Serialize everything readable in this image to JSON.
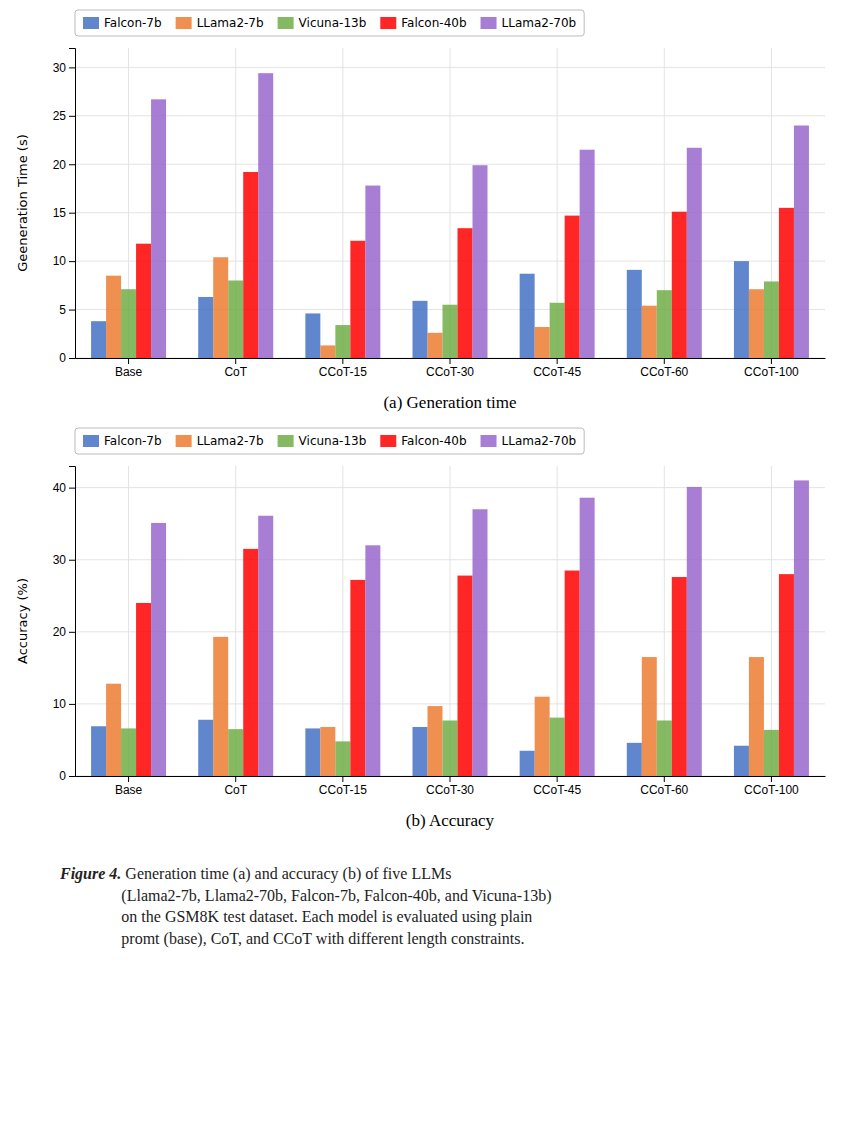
{
  "chart_data": [
    {
      "type": "bar",
      "xlabel": "(a) Generation time",
      "ylabel": "Geeneration Time (s)",
      "categories": [
        "Base",
        "CoT",
        "CCoT-15",
        "CCoT-30",
        "CCoT-45",
        "CCoT-60",
        "CCoT-100"
      ],
      "series": [
        {
          "name": "Falcon-7b",
          "color": "#4472C4",
          "values": [
            3.8,
            6.3,
            4.6,
            5.9,
            8.7,
            9.1,
            10.0
          ]
        },
        {
          "name": "LLama2-7b",
          "color": "#ED7D31",
          "values": [
            8.5,
            10.4,
            1.3,
            2.6,
            3.2,
            5.4,
            7.1
          ]
        },
        {
          "name": "Vicuna-13b",
          "color": "#70AD47",
          "values": [
            7.1,
            8.0,
            3.4,
            5.5,
            5.7,
            7.0,
            7.9
          ]
        },
        {
          "name": "Falcon-40b",
          "color": "#FF0000",
          "values": [
            11.8,
            19.2,
            12.1,
            13.4,
            14.7,
            15.1,
            15.5
          ]
        },
        {
          "name": "LLama2-70b",
          "color": "#9966CC",
          "values": [
            26.7,
            29.4,
            17.8,
            19.9,
            21.5,
            21.7,
            24.0
          ]
        }
      ],
      "ylim": [
        0,
        32
      ],
      "yticks": [
        0,
        5,
        10,
        15,
        20,
        25,
        30
      ],
      "grid": true,
      "legend": "upper left"
    },
    {
      "type": "bar",
      "xlabel": "(b) Accuracy",
      "ylabel": "Accuracy (%)",
      "categories": [
        "Base",
        "CoT",
        "CCoT-15",
        "CCoT-30",
        "CCoT-45",
        "CCoT-60",
        "CCoT-100"
      ],
      "series": [
        {
          "name": "Falcon-7b",
          "color": "#4472C4",
          "values": [
            6.9,
            7.8,
            6.6,
            6.8,
            3.5,
            4.6,
            4.2
          ]
        },
        {
          "name": "LLama2-7b",
          "color": "#ED7D31",
          "values": [
            12.8,
            19.3,
            6.8,
            9.7,
            11.0,
            16.5,
            16.5
          ]
        },
        {
          "name": "Vicuna-13b",
          "color": "#70AD47",
          "values": [
            6.6,
            6.5,
            4.8,
            7.7,
            8.1,
            7.7,
            6.4
          ]
        },
        {
          "name": "Falcon-40b",
          "color": "#FF0000",
          "values": [
            24.0,
            31.5,
            27.2,
            27.8,
            28.5,
            27.6,
            28.0
          ]
        },
        {
          "name": "LLama2-70b",
          "color": "#9966CC",
          "values": [
            35.1,
            36.1,
            32.0,
            37.0,
            38.6,
            40.1,
            41.0
          ]
        }
      ],
      "ylim": [
        0,
        43
      ],
      "yticks": [
        0,
        10,
        20,
        30,
        40
      ],
      "grid": true,
      "legend": "upper left",
      "annotations": [
        "Figure 4.",
        " Generation time (a) and accuracy (b) of five LLMs\n(Llama2-7b, Llama2-70b, Falcon-7b, Falcon-40b, and Vicuna-13b)\non the GSM8K test dataset. Each model is evaluated using plain\npromt (base), CoT, and CCoT with different length constraints."
      ]
    }
  ]
}
